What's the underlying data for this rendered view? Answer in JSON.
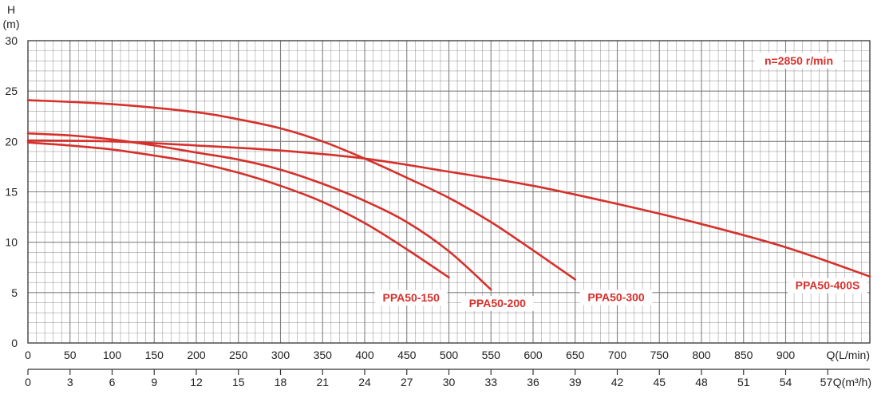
{
  "chart_data": {
    "type": "line",
    "title": "",
    "ylabel_line1": "H",
    "ylabel_line2": "(m)",
    "xlabel_primary": "Q(L/min)",
    "xlabel_secondary": "Q(m³/h)",
    "speed_note": "n=2850 r/min",
    "xlim": [
      0,
      1000
    ],
    "ylim": [
      0,
      30
    ],
    "grid": true,
    "colors": {
      "curve": "#d7302b",
      "grid": "#7a7a7a",
      "frame": "#333333"
    },
    "x_ticks": [
      {
        "value": 0,
        "label": "0"
      },
      {
        "value": 50,
        "label": "50"
      },
      {
        "value": 100,
        "label": "100"
      },
      {
        "value": 150,
        "label": "150"
      },
      {
        "value": 200,
        "label": "200"
      },
      {
        "value": 250,
        "label": "250"
      },
      {
        "value": 300,
        "label": "300"
      },
      {
        "value": 350,
        "label": "350"
      },
      {
        "value": 400,
        "label": "400"
      },
      {
        "value": 450,
        "label": "450"
      },
      {
        "value": 500,
        "label": "500"
      },
      {
        "value": 550,
        "label": "550"
      },
      {
        "value": 600,
        "label": "600"
      },
      {
        "value": 650,
        "label": "650"
      },
      {
        "value": 700,
        "label": "700"
      },
      {
        "value": 750,
        "label": "750"
      },
      {
        "value": 800,
        "label": "800"
      },
      {
        "value": 850,
        "label": "850"
      },
      {
        "value": 900,
        "label": "900"
      }
    ],
    "x2_ticks": [
      {
        "value": 0,
        "label": "0"
      },
      {
        "value": 3,
        "label": "3"
      },
      {
        "value": 6,
        "label": "6"
      },
      {
        "value": 9,
        "label": "9"
      },
      {
        "value": 12,
        "label": "12"
      },
      {
        "value": 15,
        "label": "15"
      },
      {
        "value": 18,
        "label": "18"
      },
      {
        "value": 21,
        "label": "21"
      },
      {
        "value": 24,
        "label": "24"
      },
      {
        "value": 27,
        "label": "27"
      },
      {
        "value": 30,
        "label": "30"
      },
      {
        "value": 33,
        "label": "33"
      },
      {
        "value": 36,
        "label": "36"
      },
      {
        "value": 39,
        "label": "39"
      },
      {
        "value": 42,
        "label": "42"
      },
      {
        "value": 45,
        "label": "45"
      },
      {
        "value": 48,
        "label": "48"
      },
      {
        "value": 51,
        "label": "51"
      },
      {
        "value": 54,
        "label": "54"
      },
      {
        "value": 57,
        "label": "57"
      }
    ],
    "y_ticks": [
      {
        "value": 0,
        "label": "0"
      },
      {
        "value": 5,
        "label": "5"
      },
      {
        "value": 10,
        "label": "10"
      },
      {
        "value": 15,
        "label": "15"
      },
      {
        "value": 20,
        "label": "20"
      },
      {
        "value": 25,
        "label": "25"
      },
      {
        "value": 30,
        "label": "30"
      }
    ],
    "series": [
      {
        "name": "PPA50-150",
        "x": [
          0,
          50,
          100,
          150,
          200,
          250,
          300,
          350,
          400,
          450,
          500
        ],
        "y": [
          19.9,
          19.6,
          19.2,
          18.6,
          17.9,
          16.9,
          15.6,
          14.0,
          11.9,
          9.3,
          6.5
        ]
      },
      {
        "name": "PPA50-200",
        "x": [
          0,
          50,
          100,
          150,
          200,
          250,
          300,
          350,
          400,
          450,
          500,
          550
        ],
        "y": [
          20.8,
          20.6,
          20.2,
          19.6,
          18.9,
          18.2,
          17.2,
          15.8,
          14.1,
          12.0,
          9.1,
          5.3
        ]
      },
      {
        "name": "PPA50-300",
        "x": [
          0,
          100,
          200,
          250,
          300,
          350,
          400,
          450,
          500,
          550,
          600,
          650
        ],
        "y": [
          24.1,
          23.7,
          22.9,
          22.2,
          21.3,
          20.0,
          18.3,
          16.4,
          14.4,
          12.0,
          9.2,
          6.3
        ]
      },
      {
        "name": "PPA50-400S",
        "x": [
          0,
          100,
          200,
          300,
          400,
          500,
          600,
          700,
          800,
          900,
          1000
        ],
        "y": [
          20.1,
          20.0,
          19.6,
          19.1,
          18.3,
          17.0,
          15.6,
          13.8,
          11.8,
          9.5,
          6.6
        ]
      }
    ]
  }
}
